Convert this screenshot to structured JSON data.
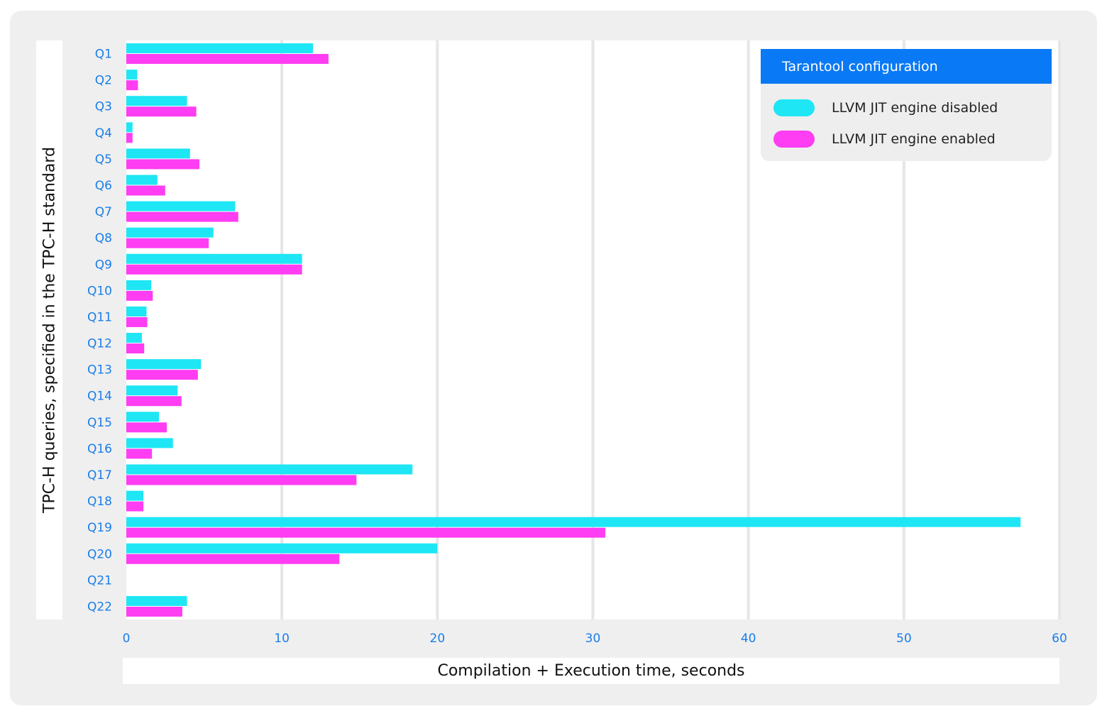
{
  "chart_data": {
    "type": "bar",
    "orientation": "horizontal",
    "title": "",
    "xlabel": "Compilation + Execution time, seconds",
    "ylabel": "TPC-H queries, specified in the TPC-H standard",
    "xlim": [
      0,
      60
    ],
    "xticks": [
      0,
      10,
      20,
      30,
      40,
      50,
      60
    ],
    "grid": true,
    "legend_position": "top-right",
    "legend_title": "Tarantool configuration",
    "categories": [
      "Q1",
      "Q2",
      "Q3",
      "Q4",
      "Q5",
      "Q6",
      "Q7",
      "Q8",
      "Q9",
      "Q10",
      "Q11",
      "Q12",
      "Q13",
      "Q14",
      "Q15",
      "Q16",
      "Q17",
      "Q18",
      "Q19",
      "Q20",
      "Q21",
      "Q22"
    ],
    "series": [
      {
        "name": "LLVM JIT engine disabled",
        "color": "#1ee6f4",
        "values": [
          12.0,
          0.7,
          3.9,
          0.4,
          4.1,
          2.0,
          7.0,
          5.6,
          11.3,
          1.6,
          1.3,
          1.0,
          4.8,
          3.3,
          2.1,
          3.0,
          18.4,
          1.1,
          57.5,
          20.0,
          0,
          3.9
        ]
      },
      {
        "name": "LLVM JIT engine enabled",
        "color": "#ff3df2",
        "values": [
          13.0,
          0.75,
          4.5,
          0.4,
          4.7,
          2.5,
          7.2,
          5.3,
          11.3,
          1.7,
          1.35,
          1.15,
          4.6,
          3.55,
          2.6,
          1.65,
          14.8,
          1.1,
          30.8,
          13.7,
          0,
          3.6
        ]
      }
    ]
  },
  "colors": {
    "tick_label": "#1a7ee8",
    "gridline": "#e6e6e6",
    "legend_header": "#0a79f5"
  }
}
